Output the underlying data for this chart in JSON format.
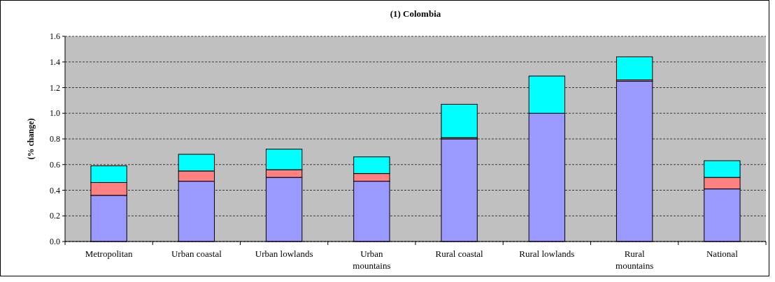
{
  "chart_data": {
    "type": "bar",
    "title": "(1) Colombia",
    "ylabel": "(% change)",
    "categories": [
      "Metropolitan",
      "Urban coastal",
      "Urban lowlands",
      "Urban mountains",
      "Rural coastal",
      "Rural lowlands",
      "Rural mountains",
      "National"
    ],
    "series": [
      {
        "color": "#9999ff",
        "values": [
          0.36,
          0.47,
          0.5,
          0.47,
          0.8,
          1.0,
          1.25,
          0.41
        ]
      },
      {
        "color": "#ff8080",
        "values": [
          0.1,
          0.08,
          0.06,
          0.06,
          0.01,
          0.0,
          0.01,
          0.09
        ]
      },
      {
        "color": "#00ffff",
        "values": [
          0.13,
          0.13,
          0.16,
          0.13,
          0.26,
          0.29,
          0.18,
          0.13
        ]
      }
    ],
    "stacked": true,
    "ylim": [
      0,
      1.6
    ],
    "yticks": [
      {
        "value": 0,
        "label": "0.0"
      },
      {
        "value": 0.2,
        "label": "0.2"
      },
      {
        "value": 0.4,
        "label": "0.4"
      },
      {
        "value": 0.6,
        "label": "0.6"
      },
      {
        "value": 0.8,
        "label": "0.8"
      },
      {
        "value": 1.0,
        "label": "1.0"
      },
      {
        "value": 1.2,
        "label": "1.2"
      },
      {
        "value": 1.4,
        "label": "1.4"
      },
      {
        "value": 1.6,
        "label": "1.6"
      }
    ],
    "grid": "y"
  }
}
